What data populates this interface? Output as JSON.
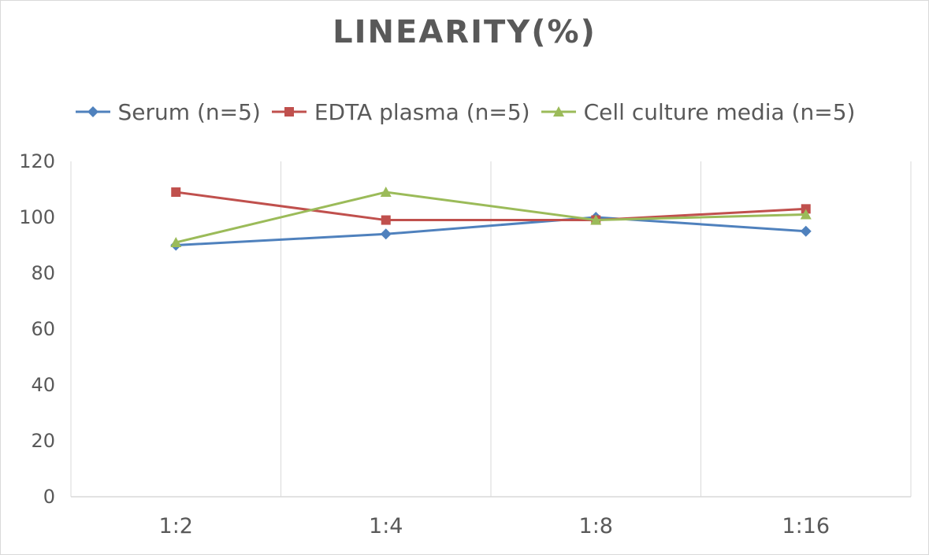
{
  "chart_data": {
    "type": "line",
    "title": "LINEARITY(%)",
    "categories": [
      "1:2",
      "1:4",
      "1:8",
      "1:16"
    ],
    "series": [
      {
        "name": "Serum (n=5)",
        "color": "#4f81bd",
        "marker": "diamond",
        "values": [
          90,
          94,
          100,
          95
        ]
      },
      {
        "name": "EDTA plasma (n=5)",
        "color": "#c0504d",
        "marker": "square",
        "values": [
          109,
          99,
          99,
          103
        ]
      },
      {
        "name": "Cell culture media (n=5)",
        "color": "#9bbb59",
        "marker": "triangle",
        "values": [
          91,
          109,
          99,
          101
        ]
      }
    ],
    "ylim": [
      0,
      120
    ],
    "yticks": [
      "0",
      "20",
      "40",
      "60",
      "80",
      "100",
      "120"
    ],
    "grid": "vertical",
    "legend_position": "top",
    "xlabel": "",
    "ylabel": ""
  }
}
